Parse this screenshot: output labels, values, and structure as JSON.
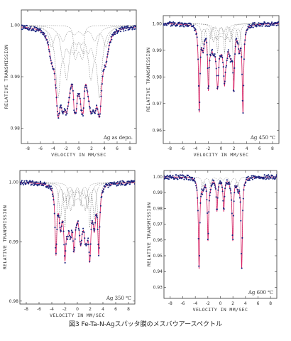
{
  "caption": "図3  Fe-Ta-N-Agスパッタ膜のメスバウアースペクトル",
  "axis_labels": {
    "x": "VELOCITY IN MM/SEC",
    "y": "RELATIVE TRANSMISSION"
  },
  "colors": {
    "fit": "#d81b60",
    "data": "#1a237e",
    "component": "#666666",
    "axis": "#333333"
  },
  "chart_data": [
    {
      "type": "scatter",
      "annotation": "Ag    as depo.",
      "xlabel": "VELOCITY IN MM/SEC",
      "ylabel": "RELATIVE TRANSMISSION",
      "xlim": [
        -9,
        9
      ],
      "ylim": [
        0.977,
        1.003
      ],
      "x_ticks": [
        -8,
        -6,
        -4,
        -2,
        0,
        2,
        4,
        6,
        8
      ],
      "y_ticks": [
        1.0,
        0.99,
        0.98
      ],
      "y_tick_labels": [
        "1.00",
        "0.99",
        "0.98"
      ],
      "components": [
        {
          "depth": 0.013,
          "shift": 0.0,
          "field": 6.5,
          "width": 0.9
        },
        {
          "depth": 0.0045,
          "shift": 0.0,
          "field": 1.4,
          "width": 0.35
        },
        {
          "depth": 0.006,
          "shift": 0.0,
          "field": 5.0,
          "width": 0.9
        },
        {
          "depth": 0.004,
          "shift": 0.0,
          "field": 8.5,
          "width": 1.0
        }
      ]
    },
    {
      "type": "scatter",
      "annotation": "Ag    450 ℃",
      "xlabel": "VELOCITY IN MM/SEC",
      "ylabel": "RELATIVE TRANSMISSION",
      "xlim": [
        -9,
        9
      ],
      "ylim": [
        0.955,
        1.003
      ],
      "x_ticks": [
        -8,
        -6,
        -4,
        -2,
        0,
        2,
        4,
        6,
        8
      ],
      "y_ticks": [
        1.0,
        0.99,
        0.98,
        0.97,
        0.96
      ],
      "y_tick_labels": [
        "1.00",
        "0.99",
        "0.98",
        "0.97",
        "0.96"
      ],
      "components": [
        {
          "depth": 0.032,
          "shift": 0.0,
          "field": 6.8,
          "width": 0.28
        },
        {
          "depth": 0.008,
          "shift": 0.0,
          "field": 5.6,
          "width": 0.45
        },
        {
          "depth": 0.006,
          "shift": 0.1,
          "field": 2.6,
          "width": 0.5
        },
        {
          "depth": 0.004,
          "shift": 0.0,
          "field": 1.6,
          "width": 0.6
        }
      ]
    },
    {
      "type": "scatter",
      "annotation": "Ag    350 ℃",
      "xlabel": "VELOCITY IN MM/SEC",
      "ylabel": "RELATIVE TRANSMISSION",
      "xlim": [
        -9,
        9
      ],
      "ylim": [
        0.9795,
        1.002
      ],
      "x_ticks": [
        -8,
        -6,
        -4,
        -2,
        0,
        2,
        4,
        6,
        8
      ],
      "y_ticks": [
        1.0,
        0.99,
        0.98
      ],
      "y_tick_labels": [
        "1.00",
        "0.99",
        "0.98"
      ],
      "components": [
        {
          "depth": 0.011,
          "shift": 0.0,
          "field": 6.7,
          "width": 0.35
        },
        {
          "depth": 0.006,
          "shift": 0.0,
          "field": 5.3,
          "width": 0.5
        },
        {
          "depth": 0.004,
          "shift": 0.1,
          "field": 2.3,
          "width": 0.5
        },
        {
          "depth": 0.003,
          "shift": 0.0,
          "field": 4.0,
          "width": 0.7
        }
      ]
    },
    {
      "type": "scatter",
      "annotation": "Ag    600 ℃",
      "xlabel": "VELOCITY IN MM/SEC",
      "ylabel": "RELATIVE TRANSMISSION",
      "xlim": [
        -9,
        9
      ],
      "ylim": [
        0.923,
        1.004
      ],
      "x_ticks": [
        -8,
        -6,
        -4,
        -2,
        0,
        2,
        4,
        6,
        8
      ],
      "y_ticks": [
        1.0,
        0.99,
        0.98,
        0.97,
        0.96,
        0.95,
        0.94,
        0.93
      ],
      "y_tick_labels": [
        "1.00",
        "0.99",
        "0.98",
        "0.97",
        "0.96",
        "0.95",
        "0.94",
        "0.93"
      ],
      "components": [
        {
          "depth": 0.058,
          "shift": 0.0,
          "field": 6.8,
          "width": 0.26
        },
        {
          "depth": 0.006,
          "shift": 0.0,
          "field": 5.6,
          "width": 0.4
        }
      ]
    }
  ]
}
